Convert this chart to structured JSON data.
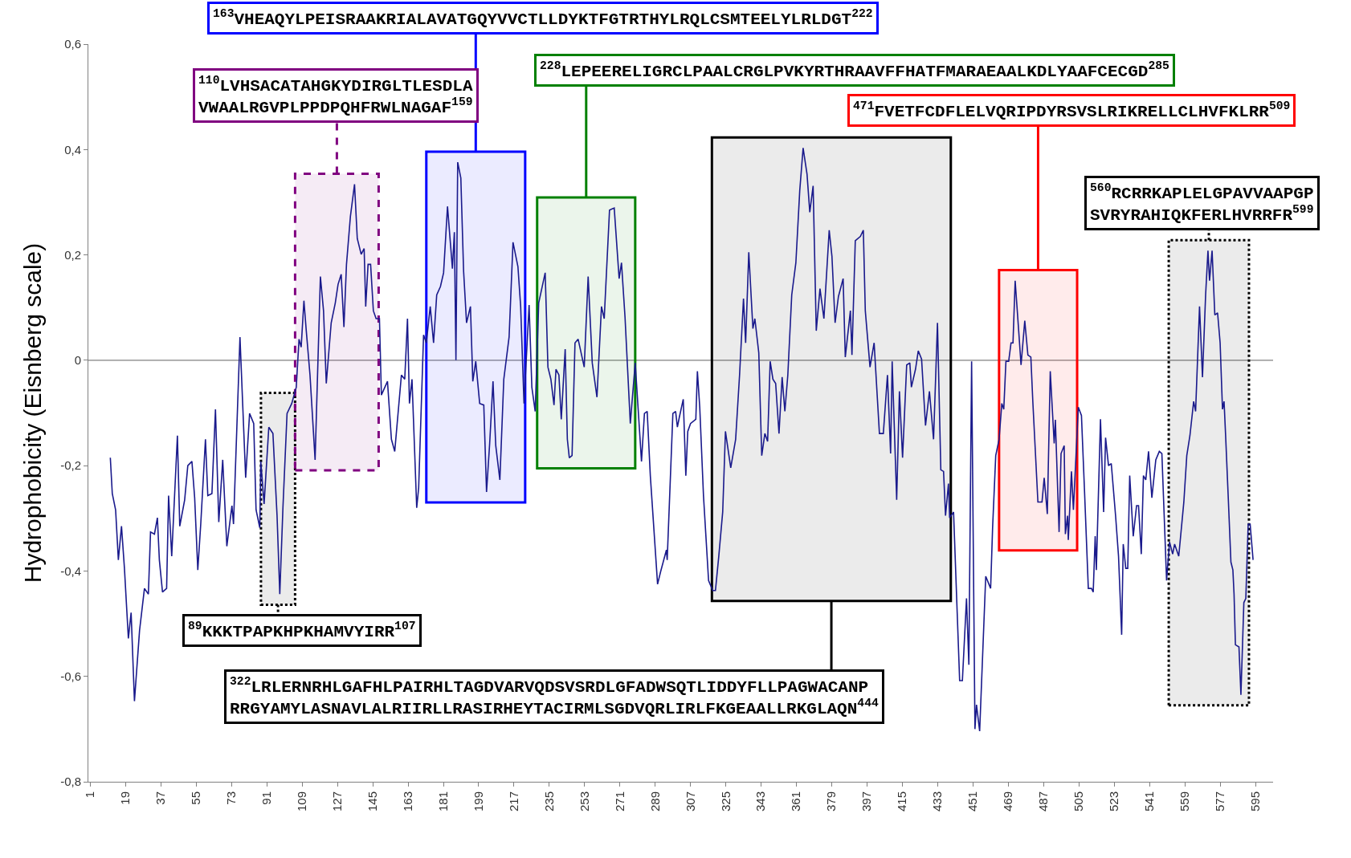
{
  "chart_data": {
    "type": "line",
    "ylabel": "Hydrophobicity (Eisnberg scale)",
    "x": [
      11.2,
      12.2,
      13.9,
      15.3,
      16.9,
      18.4,
      20.4,
      21.8,
      23.5,
      26.1,
      28.6,
      30.6,
      31.7,
      33.7,
      35.2,
      36.2,
      37.8,
      39.9,
      40.9,
      42.5,
      45.4,
      46.6,
      49.1,
      50.7,
      52.8,
      54.2,
      55.8,
      57.3,
      59.7,
      60.9,
      63.0,
      64.8,
      66.5,
      68.5,
      70.6,
      73.2,
      74.0,
      77.3,
      80.2,
      82.2,
      84.3,
      85.5,
      87.4,
      87.9,
      89.6,
      92.0,
      94.1,
      96.2,
      97.6,
      99.2,
      101.3,
      103.7,
      106.0,
      107.4,
      108.5,
      109.9,
      111.1,
      113.0,
      115.6,
      118.3,
      119.9,
      121.3,
      123.8,
      125.9,
      127.3,
      128.9,
      130.3,
      131.6,
      133.6,
      135.7,
      137.1,
      139.1,
      140.6,
      141.4,
      142.6,
      143.9,
      145.3,
      146.7,
      148.4,
      149.4,
      152.5,
      154.5,
      156.2,
      159.6,
      161.3,
      162.7,
      163.7,
      165.0,
      167.4,
      168.4,
      170.9,
      172.3,
      174.3,
      176.0,
      177.6,
      179.5,
      181.1,
      183.1,
      185.6,
      186.6,
      187.4,
      188.3,
      189.9,
      191.3,
      192.8,
      194.8,
      196.0,
      197.5,
      199.5,
      201.6,
      203.0,
      204.6,
      206.3,
      207.7,
      209.8,
      211.8,
      214.5,
      216.5,
      219.0,
      220.4,
      222.1,
      224.7,
      226.1,
      227.8,
      229.6,
      232.9,
      234.3,
      235.8,
      237.4,
      238.4,
      239.9,
      241.1,
      243.1,
      244.2,
      245.2,
      246.6,
      248.1,
      249.7,
      252.8,
      254.8,
      256.9,
      259.3,
      261.6,
      263.0,
      265.7,
      268.1,
      270.6,
      271.8,
      273.6,
      276.3,
      278.8,
      282.0,
      283.5,
      284.9,
      286.5,
      290.2,
      291.7,
      294.7,
      295.1,
      298.0,
      299.4,
      300.3,
      301.3,
      303.3,
      304.6,
      305.6,
      307.0,
      309.7,
      310.5,
      311.7,
      313.6,
      316.2,
      318.3,
      319.7,
      321.4,
      323.4,
      324.8,
      327.5,
      330.0,
      332.0,
      334.0,
      335.1,
      336.7,
      338.8,
      339.8,
      341.8,
      343.3,
      344.9,
      346.3,
      347.6,
      349.0,
      350.4,
      352.1,
      353.7,
      355.1,
      356.6,
      358.6,
      360.7,
      362.7,
      364.4,
      366.4,
      367.8,
      369.5,
      371.1,
      373.0,
      375.0,
      377.7,
      379.1,
      380.7,
      382.4,
      384.8,
      385.9,
      388.5,
      389.3,
      391.0,
      393.6,
      395.1,
      396.1,
      398.5,
      400.6,
      403.3,
      405.3,
      407.4,
      409.0,
      409.8,
      412.1,
      413.5,
      415.1,
      417.2,
      418.8,
      419.6,
      421.7,
      423.1,
      424.8,
      426.8,
      428.8,
      430.9,
      432.9,
      434.6,
      436.0,
      437.0,
      438.5,
      439.1,
      441.1,
      444.2,
      445.6,
      447.7,
      448.9,
      450.3,
      452.0,
      452.8,
      454.4,
      457.5,
      460.0,
      461.0,
      462.6,
      464.3,
      465.7,
      466.7,
      467.8,
      469.2,
      470.4,
      471.4,
      472.5,
      474.3,
      475.5,
      477.4,
      479.0,
      480.5,
      481.5,
      482.7,
      484.1,
      486.2,
      487.3,
      488.9,
      490.4,
      492.4,
      493.0,
      494.9,
      495.9,
      497.5,
      498.1,
      499.2,
      499.6,
      501.2,
      502.2,
      504.7,
      506.3,
      507.8,
      509.8,
      511.4,
      512.3,
      513.3,
      513.9,
      516.0,
      517.6,
      518.6,
      520.1,
      521.5,
      523.7,
      525.2,
      526.8,
      527.6,
      528.9,
      529.9,
      530.9,
      532.7,
      534.4,
      535.4,
      536.8,
      537.9,
      539.1,
      540.5,
      542.2,
      544.2,
      546.0,
      547.3,
      549.7,
      551.2,
      552.8,
      553.8,
      555.9,
      558.5,
      560.0,
      561.6,
      563.5,
      564.5,
      566.5,
      568.0,
      569.6,
      570.8,
      571.6,
      572.9,
      574.3,
      575.7,
      577.0,
      578.2,
      579.0,
      579.8,
      581.1,
      582.5,
      583.5,
      584.1,
      584.8,
      586.6,
      587.6,
      589.1,
      590.1,
      591.3,
      592.3,
      593.8
    ],
    "series": [
      {
        "color": "#1a1a8c",
        "values": [
          -0.185,
          -0.253,
          -0.284,
          -0.379,
          -0.315,
          -0.395,
          -0.528,
          -0.479,
          -0.647,
          -0.513,
          -0.433,
          -0.444,
          -0.326,
          -0.33,
          -0.299,
          -0.379,
          -0.44,
          -0.433,
          -0.257,
          -0.372,
          -0.143,
          -0.315,
          -0.265,
          -0.2,
          -0.192,
          -0.261,
          -0.398,
          -0.311,
          -0.15,
          -0.257,
          -0.253,
          -0.093,
          -0.307,
          -0.189,
          -0.353,
          -0.276,
          -0.311,
          0.044,
          -0.223,
          -0.101,
          -0.12,
          -0.284,
          -0.318,
          -0.192,
          -0.273,
          -0.127,
          -0.139,
          -0.295,
          -0.444,
          -0.28,
          -0.101,
          -0.082,
          -0.051,
          0.04,
          0.025,
          0.113,
          0.056,
          -0.028,
          -0.189,
          0.159,
          0.094,
          -0.044,
          0.071,
          0.109,
          0.144,
          0.163,
          0.063,
          0.182,
          0.273,
          0.334,
          0.231,
          0.201,
          0.212,
          0.102,
          0.182,
          0.182,
          0.094,
          0.079,
          0.079,
          -0.066,
          -0.04,
          -0.15,
          -0.173,
          -0.028,
          -0.036,
          0.079,
          -0.082,
          -0.036,
          -0.28,
          -0.242,
          0.048,
          0.033,
          0.102,
          0.033,
          0.124,
          0.14,
          0.166,
          0.292,
          0.174,
          0.243,
          0,
          0.376,
          0.346,
          0.17,
          0.071,
          0.102,
          -0.04,
          -0.002,
          -0.082,
          -0.085,
          -0.25,
          -0.158,
          -0.04,
          -0.162,
          -0.227,
          -0.036,
          0.044,
          0.224,
          0.178,
          0.102,
          -0.082,
          0.105,
          -0.051,
          -0.097,
          0.109,
          0.166,
          -0.013,
          -0.036,
          -0.085,
          -0.017,
          -0.028,
          -0.112,
          0.021,
          -0.15,
          -0.185,
          -0.181,
          0.033,
          0.04,
          -0.013,
          0.159,
          -0.005,
          -0.07,
          0.102,
          0.079,
          0.285,
          0.289,
          0.155,
          0.185,
          0.082,
          -0.12,
          -0.005,
          -0.192,
          -0.101,
          -0.097,
          -0.219,
          -0.425,
          -0.402,
          -0.36,
          -0.379,
          -0.101,
          -0.097,
          -0.127,
          -0.108,
          -0.074,
          -0.219,
          -0.135,
          -0.12,
          -0.112,
          -0.021,
          -0.089,
          -0.257,
          -0.418,
          -0.437,
          -0.437,
          -0.372,
          -0.288,
          -0.135,
          -0.204,
          -0.15,
          -0.028,
          0.117,
          0.033,
          0.205,
          0.06,
          0.079,
          0.014,
          -0.181,
          -0.139,
          -0.154,
          -0.002,
          -0.036,
          -0.044,
          -0.139,
          -0.032,
          -0.097,
          -0.028,
          0.124,
          0.185,
          0.323,
          0.403,
          0.353,
          0.281,
          0.331,
          0.056,
          0.136,
          0.079,
          0.247,
          0.197,
          0.071,
          0.121,
          0.155,
          0.006,
          0.094,
          0.01,
          0.227,
          0.235,
          0.247,
          0.094,
          -0.013,
          0.033,
          -0.139,
          -0.139,
          -0.028,
          -0.177,
          -0.002,
          -0.265,
          -0.059,
          -0.185,
          -0.009,
          -0.005,
          -0.051,
          -0.017,
          0.018,
          0.002,
          -0.124,
          -0.059,
          -0.15,
          0.071,
          -0.208,
          -0.211,
          -0.295,
          -0.234,
          -0.299,
          -0.288,
          -0.608,
          -0.608,
          -0.452,
          -0.578,
          -0.002,
          -0.7,
          -0.654,
          -0.704,
          -0.41,
          -0.433,
          -0.318,
          -0.181,
          -0.15,
          -0.082,
          -0.093,
          -0.002,
          -0.002,
          0.033,
          0.033,
          0.151,
          0.056,
          -0.009,
          0.075,
          0.01,
          0.006,
          -0.078,
          -0.166,
          -0.269,
          -0.269,
          -0.223,
          -0.292,
          -0.021,
          -0.158,
          -0.113,
          -0.326,
          -0.177,
          -0.162,
          -0.33,
          -0.295,
          -0.341,
          -0.211,
          -0.284,
          -0.089,
          -0.105,
          -0.242,
          -0.433,
          -0.433,
          -0.44,
          -0.334,
          -0.398,
          -0.112,
          -0.288,
          -0.147,
          -0.2,
          -0.196,
          -0.295,
          -0.372,
          -0.521,
          -0.349,
          -0.395,
          -0.395,
          -0.219,
          -0.334,
          -0.276,
          -0.276,
          -0.368,
          -0.219,
          -0.227,
          -0.173,
          -0.261,
          -0.189,
          -0.173,
          -0.177,
          -0.418,
          -0.345,
          -0.368,
          -0.349,
          -0.372,
          -0.269,
          -0.181,
          -0.143,
          -0.078,
          -0.097,
          0.102,
          -0.032,
          0.124,
          0.208,
          0.151,
          0.208,
          0.086,
          0.09,
          0.033,
          -0.093,
          -0.078,
          -0.143,
          -0.257,
          -0.383,
          -0.398,
          -0.444,
          -0.54,
          -0.544,
          -0.635,
          -0.46,
          -0.452,
          -0.311,
          -0.311,
          -0.379
        ]
      }
    ],
    "xlim": [
      0,
      604
    ],
    "xticks": [
      1,
      19,
      37,
      55,
      73,
      91,
      109,
      127,
      145,
      163,
      181,
      199,
      217,
      235,
      253,
      271,
      289,
      307,
      325,
      343,
      361,
      379,
      397,
      415,
      433,
      451,
      469,
      487,
      505,
      523,
      541,
      559,
      577,
      595
    ],
    "ylim": [
      -0.8,
      0.6
    ],
    "yticks": [
      {
        "value": -0.8,
        "label": "-0,8"
      },
      {
        "value": -0.6,
        "label": "-0,6"
      },
      {
        "value": -0.4,
        "label": "-0,4"
      },
      {
        "value": -0.2,
        "label": "-0,2"
      },
      0,
      {
        "value": 0.2,
        "label": "0,2"
      },
      {
        "value": 0.4,
        "label": "0,4"
      },
      {
        "value": 0.6,
        "label": "0,6"
      }
    ],
    "ref_lines": [
      {
        "axis": "y",
        "value": 0,
        "color": "#808080"
      }
    ],
    "bands": [
      {
        "axis": "x",
        "from": 88.0,
        "to": 105.4,
        "color": "#000000",
        "label": "$^{89}$KKKTPAPKHPKHAMVYIRR$^{107}$"
      },
      {
        "axis": "x",
        "from": 105.4,
        "to": 148.0,
        "color": "#800080",
        "label": "$^{110}$LVHSACATAHGKYDIRGLTLESDLA\nVWAALRGVPLPPDPQHFRWLNAGAF$^{159}$"
      },
      {
        "axis": "x",
        "from": 172.3,
        "to": 222.7,
        "color": "#0000ff",
        "label": "$^{163}$VHEAQYLPEISRAAKRIALAVATGQYVVCTLLDYKTFGTRTHYLRQLCSMTEELYLRLDGT$^{222}$"
      },
      {
        "axis": "x",
        "from": 228.8,
        "to": 278.8,
        "color": "#008000",
        "label": "$^{228}$LEPEERELIGRCLPAALCRGLPVKYRTHRAAVFFHATFMARAEAALKDLYAAFCECGD$^{285}$"
      },
      {
        "axis": "x",
        "from": 317.9,
        "to": 439.7,
        "color": "#000000",
        "label": "$^{322}$LRLERNRHLGAFHLPAIRHLTAGDVARVQDSVSRDLGFADWSQTLIDDYFLLPAGWACANP\nRRGYAMYLASNAVLALRIIRLLRASIRHEYTACIRMLSGDVQRLIRLFKGEAALLRKGLAQN$^{444}$"
      },
      {
        "axis": "x",
        "from": 464.3,
        "to": 504.1,
        "color": "#ff0000",
        "label": "$^{471}$FVETFCDFLELVQRIPDYRSVSLRIKRELLCLHVFKLRR$^{509}$"
      },
      {
        "axis": "x",
        "from": 550.8,
        "to": 591.7,
        "color": "#000000",
        "label": "$^{560}$RCRRKAPLELGPAVVAAPGP\nSVRYRAHIQKFERLHVRRFR$^{599}$"
      }
    ]
  }
}
